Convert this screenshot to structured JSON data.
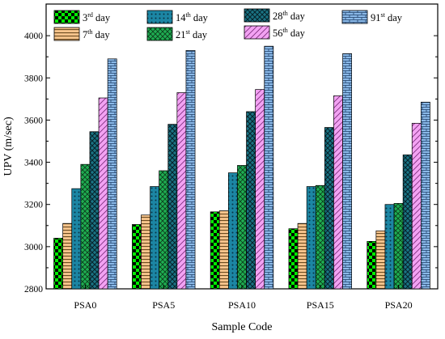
{
  "chart_data": {
    "type": "bar",
    "xlabel": "Sample Code",
    "ylabel": "UPV  (m/sec)",
    "ylim": [
      2800,
      4150
    ],
    "yticks": [
      "2800",
      "3000",
      "3200",
      "3400",
      "3600",
      "3800",
      "4000"
    ],
    "grid": false,
    "legend_position": "top",
    "categories": [
      "PSA0",
      "PSA5",
      "PSA10",
      "PSA15",
      "PSA20"
    ],
    "series": [
      {
        "key": "d3",
        "name": {
          "num": "3",
          "sup": "rd",
          "rest": " day"
        },
        "values": [
          3040,
          3105,
          3165,
          3085,
          3025
        ]
      },
      {
        "key": "d7",
        "name": {
          "num": "7",
          "sup": "th",
          "rest": " day"
        },
        "values": [
          3110,
          3150,
          3170,
          3110,
          3075
        ]
      },
      {
        "key": "d14",
        "name": {
          "num": "14",
          "sup": "th",
          "rest": " day"
        },
        "values": [
          3275,
          3285,
          3350,
          3285,
          3200
        ]
      },
      {
        "key": "d21",
        "name": {
          "num": "21",
          "sup": "st",
          "rest": " day"
        },
        "values": [
          3390,
          3360,
          3385,
          3290,
          3205
        ]
      },
      {
        "key": "d28",
        "name": {
          "num": "28",
          "sup": "th",
          "rest": " day"
        },
        "values": [
          3545,
          3580,
          3640,
          3565,
          3435
        ]
      },
      {
        "key": "d56",
        "name": {
          "num": "56",
          "sup": "th",
          "rest": " day"
        },
        "values": [
          3705,
          3730,
          3745,
          3715,
          3585
        ]
      },
      {
        "key": "d91",
        "name": {
          "num": "91",
          "sup": "st",
          "rest": " day"
        },
        "values": [
          3890,
          3930,
          3950,
          3915,
          3685
        ]
      }
    ],
    "colors": {
      "d3": "#00ee00",
      "d7": "#f6c48c",
      "d14": "#1a7f9a",
      "d21": "#179a48",
      "d28": "#1a6f7a",
      "d56": "#ee88ee",
      "d91": "#7aaee0"
    }
  }
}
